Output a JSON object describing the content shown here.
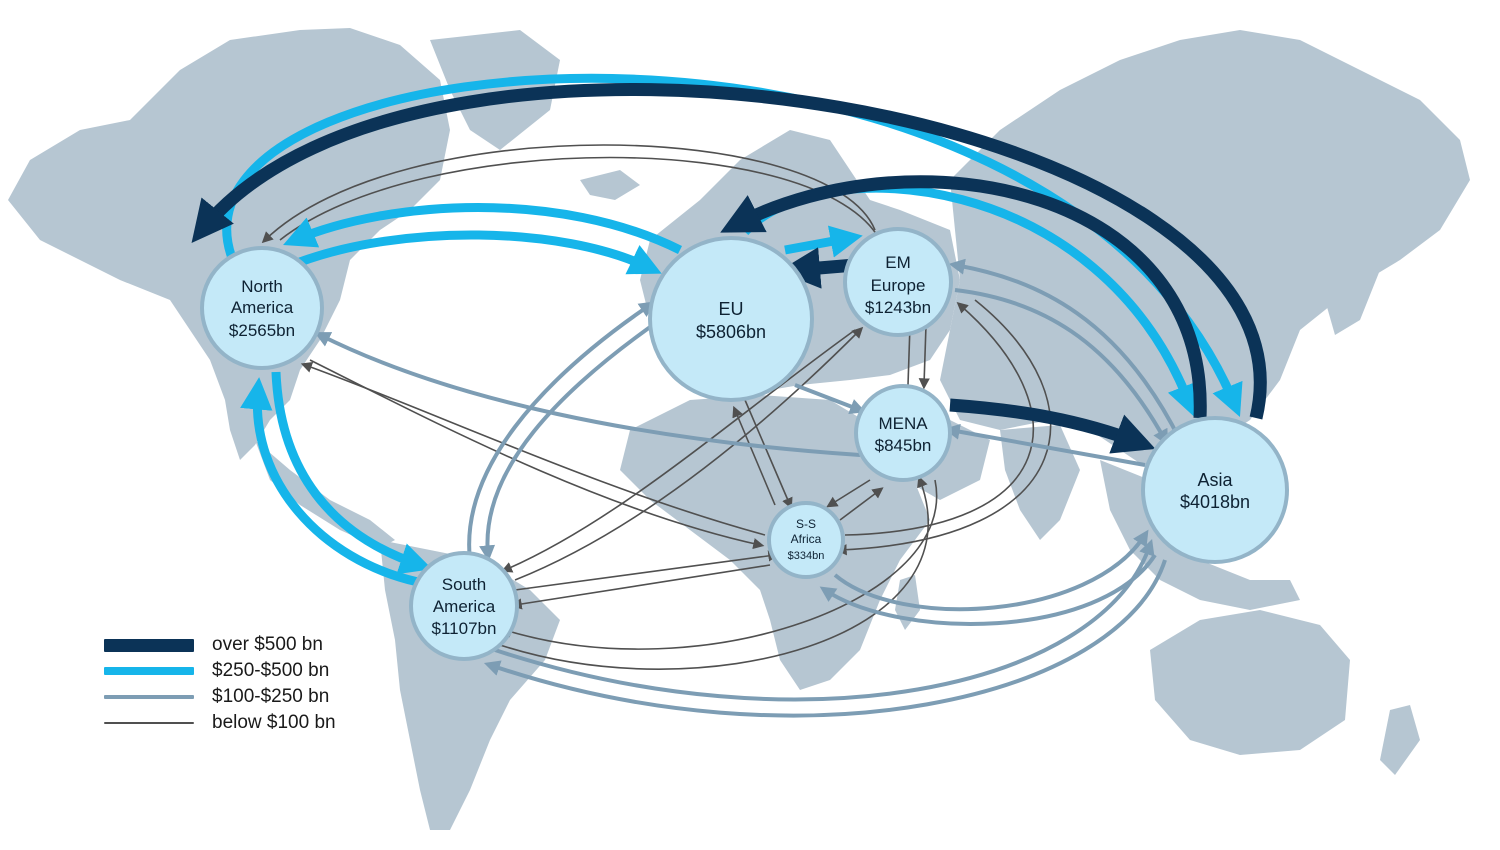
{
  "colors": {
    "land": "#b6c6d2",
    "node_fill": "#c4e9f8",
    "node_stroke": "#93b4c8",
    "over_500": "#0b3357",
    "r250_500": "#16b5ea",
    "r100_250": "#7d9db4",
    "below_100": "#505050"
  },
  "nodes": {
    "north_america": {
      "line1": "North",
      "line2": "America",
      "value": "$2565bn"
    },
    "eu": {
      "line1": "EU",
      "value": "$5806bn"
    },
    "em_europe": {
      "line1": "EM",
      "line2": "Europe",
      "value": "$1243bn"
    },
    "mena": {
      "line1": "MENA",
      "value": "$845bn"
    },
    "asia": {
      "line1": "Asia",
      "value": "$4018bn"
    },
    "ss_africa": {
      "line1": "S-S",
      "line2": "Africa",
      "value": "$334bn"
    },
    "south_america": {
      "line1": "South",
      "line2": "America",
      "value": "$1107bn"
    }
  },
  "legend": [
    {
      "label": "over $500 bn",
      "tier": "over_500"
    },
    {
      "label": "$250-$500 bn",
      "tier": "r250_500"
    },
    {
      "label": "$100-$250 bn",
      "tier": "r100_250"
    },
    {
      "label": "below $100 bn",
      "tier": "below_100"
    }
  ],
  "flows": [
    {
      "from": "Asia",
      "to": "North America",
      "tier": "over_500"
    },
    {
      "from": "Asia",
      "to": "EU",
      "tier": "over_500"
    },
    {
      "from": "EM Europe",
      "to": "EU",
      "tier": "over_500"
    },
    {
      "from": "MENA",
      "to": "Asia",
      "tier": "over_500"
    },
    {
      "from": "North America",
      "to": "Asia",
      "tier": "r250_500"
    },
    {
      "from": "EU",
      "to": "Asia",
      "tier": "r250_500"
    },
    {
      "from": "EU",
      "to": "North America",
      "tier": "r250_500"
    },
    {
      "from": "North America",
      "to": "EU",
      "tier": "r250_500"
    },
    {
      "from": "EU",
      "to": "EM Europe",
      "tier": "r250_500"
    },
    {
      "from": "North America",
      "to": "South America",
      "tier": "r250_500"
    },
    {
      "from": "South America",
      "to": "North America",
      "tier": "r250_500"
    },
    {
      "from": "Asia",
      "to": "EM Europe",
      "tier": "r100_250"
    },
    {
      "from": "EM Europe",
      "to": "Asia",
      "tier": "r100_250"
    },
    {
      "from": "Asia",
      "to": "MENA",
      "tier": "r100_250"
    },
    {
      "from": "MENA",
      "to": "North America",
      "tier": "r100_250"
    },
    {
      "from": "EU",
      "to": "MENA",
      "tier": "r100_250"
    },
    {
      "from": "South America",
      "to": "EU",
      "tier": "r100_250"
    },
    {
      "from": "EU",
      "to": "South America",
      "tier": "r100_250"
    },
    {
      "from": "Asia",
      "to": "South America",
      "tier": "r100_250"
    },
    {
      "from": "South America",
      "to": "Asia",
      "tier": "r100_250"
    },
    {
      "from": "Asia",
      "to": "S-S Africa",
      "tier": "r100_250"
    },
    {
      "from": "S-S Africa",
      "to": "Asia",
      "tier": "r100_250"
    },
    {
      "from": "EM Europe",
      "to": "North America",
      "tier": "below_100"
    },
    {
      "from": "North America",
      "to": "EM Europe",
      "tier": "below_100"
    },
    {
      "from": "North America",
      "to": "S-S Africa",
      "tier": "below_100"
    },
    {
      "from": "S-S Africa",
      "to": "North America",
      "tier": "below_100"
    },
    {
      "from": "EU",
      "to": "S-S Africa",
      "tier": "below_100"
    },
    {
      "from": "S-S Africa",
      "to": "EU",
      "tier": "below_100"
    },
    {
      "from": "MENA",
      "to": "S-S Africa",
      "tier": "below_100"
    },
    {
      "from": "S-S Africa",
      "to": "MENA",
      "tier": "below_100"
    },
    {
      "from": "MENA",
      "to": "EM Europe",
      "tier": "below_100"
    },
    {
      "from": "EM Europe",
      "to": "MENA",
      "tier": "below_100"
    },
    {
      "from": "MENA",
      "to": "South America",
      "tier": "below_100"
    },
    {
      "from": "South America",
      "to": "MENA",
      "tier": "below_100"
    },
    {
      "from": "South America",
      "to": "S-S Africa",
      "tier": "below_100"
    },
    {
      "from": "S-S Africa",
      "to": "South America",
      "tier": "below_100"
    },
    {
      "from": "EM Europe",
      "to": "S-S Africa",
      "tier": "below_100"
    },
    {
      "from": "S-S Africa",
      "to": "EM Europe",
      "tier": "below_100"
    },
    {
      "from": "EM Europe",
      "to": "South America",
      "tier": "below_100"
    },
    {
      "from": "South America",
      "to": "EM Europe",
      "tier": "below_100"
    }
  ]
}
